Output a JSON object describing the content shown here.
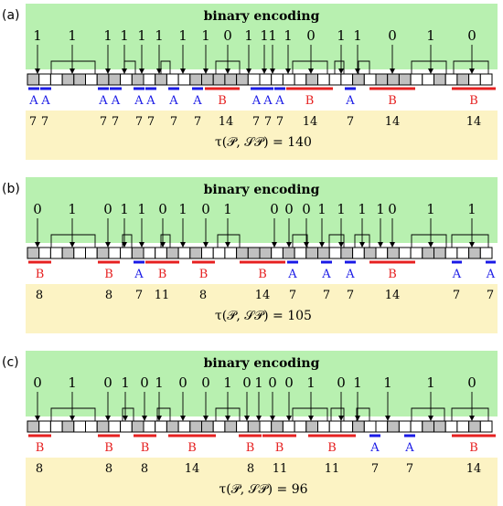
{
  "panels": [
    {
      "label": "(a)",
      "title": "binary encoding",
      "bits": [
        "1",
        "1",
        "1",
        "1",
        "1",
        "1",
        "1",
        "1",
        "0",
        "1",
        "1",
        "1",
        "1",
        "0",
        "1",
        "1",
        "0",
        "1",
        "0"
      ],
      "symbols": [
        "A",
        "A",
        "A",
        "A",
        "A",
        "A",
        "A",
        "A",
        "B",
        "A",
        "A",
        "A",
        "B",
        "A",
        "B",
        "B"
      ],
      "values": [
        "7",
        "7",
        "7",
        "7",
        "7",
        "7",
        "7",
        "7",
        "14",
        "7",
        "7",
        "7",
        "14",
        "7",
        "14",
        "14"
      ],
      "tau": "τ(𝒫, 𝒮𝒫) = 140"
    },
    {
      "label": "(b)",
      "title": "binary encoding",
      "bits": [
        "0",
        "1",
        "0",
        "1",
        "1",
        "0",
        "1",
        "0",
        "1",
        "0",
        "0",
        "0",
        "1",
        "1",
        "1",
        "1",
        "0",
        "1",
        "1"
      ],
      "symbols": [
        "B",
        "B",
        "A",
        "B",
        "B",
        "B",
        "A",
        "A",
        "A",
        "B",
        "A",
        "A"
      ],
      "values": [
        "8",
        "8",
        "7",
        "11",
        "8",
        "14",
        "7",
        "7",
        "7",
        "14",
        "7",
        "7"
      ],
      "tau": "τ(𝒫, 𝒮𝒫) = 105"
    },
    {
      "label": "(c)",
      "title": "binary encoding",
      "bits": [
        "0",
        "1",
        "0",
        "1",
        "0",
        "1",
        "0",
        "0",
        "1",
        "0",
        "1",
        "0",
        "0",
        "1",
        "0",
        "1",
        "1",
        "1",
        "0"
      ],
      "symbols": [
        "B",
        "B",
        "B",
        "B",
        "B",
        "B",
        "B",
        "A",
        "A",
        "B"
      ],
      "values": [
        "8",
        "8",
        "8",
        "14",
        "8",
        "11",
        "11",
        "7",
        "7",
        "14"
      ],
      "tau": "τ(𝒫, 𝒮𝒫) = 96"
    }
  ]
}
